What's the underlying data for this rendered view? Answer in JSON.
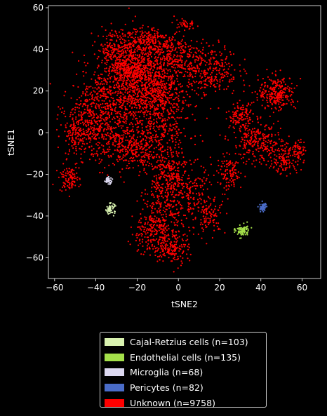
{
  "chart_data": {
    "type": "scatter",
    "xlabel": "tSNE2",
    "ylabel": "tSNE1",
    "xlim": [
      -63,
      69
    ],
    "ylim": [
      -70,
      61
    ],
    "xticks": [
      -60,
      -40,
      -20,
      0,
      20,
      40,
      60
    ],
    "yticks": [
      -60,
      -40,
      -20,
      0,
      20,
      40,
      60
    ],
    "xtick_labels": [
      "−60",
      "−40",
      "−20",
      "0",
      "20",
      "40",
      "60"
    ],
    "ytick_labels": [
      "−60",
      "−40",
      "−20",
      "0",
      "20",
      "40",
      "60"
    ],
    "grid": false,
    "legend_position": "below plot",
    "series": [
      {
        "name": "Cajal-Retzius cells (n=103)",
        "color": "#d9f2b0",
        "clusters": [
          {
            "x": -33,
            "y": -36.5,
            "sx": 1.1,
            "sy": 1.2,
            "n": 60
          }
        ]
      },
      {
        "name": "Endothelial cells (n=135)",
        "color": "#a4e04a",
        "clusters": [
          {
            "x": 31,
            "y": -47,
            "sx": 1.6,
            "sy": 1.5,
            "n": 80
          }
        ]
      },
      {
        "name": "Microglia (n=68)",
        "color": "#dcd8f0",
        "clusters": [
          {
            "x": -34,
            "y": -23,
            "sx": 1.0,
            "sy": 0.8,
            "n": 40
          }
        ]
      },
      {
        "name": "Pericytes (n=82)",
        "color": "#4a6cc8",
        "clusters": [
          {
            "x": 41,
            "y": -36,
            "sx": 0.8,
            "sy": 1.2,
            "n": 50
          }
        ]
      },
      {
        "name": "Unknown (n=9758)",
        "color": "#ff0000",
        "clusters": [
          {
            "x": -20,
            "y": 27,
            "sx": 9,
            "sy": 10,
            "n": 700
          },
          {
            "x": -10,
            "y": 20,
            "sx": 7,
            "sy": 7,
            "n": 400
          },
          {
            "x": -35,
            "y": 12,
            "sx": 9,
            "sy": 9,
            "n": 450
          },
          {
            "x": -45,
            "y": 5,
            "sx": 4,
            "sy": 8,
            "n": 180
          },
          {
            "x": -50,
            "y": -2,
            "sx": 2.5,
            "sy": 5,
            "n": 90
          },
          {
            "x": -30,
            "y": 40,
            "sx": 5,
            "sy": 5,
            "n": 200
          },
          {
            "x": -5,
            "y": 38,
            "sx": 8,
            "sy": 5,
            "n": 280
          },
          {
            "x": 15,
            "y": 30,
            "sx": 7,
            "sy": 6,
            "n": 300
          },
          {
            "x": 3,
            "y": 52,
            "sx": 2.5,
            "sy": 1.5,
            "n": 40
          },
          {
            "x": -30,
            "y": -5,
            "sx": 6,
            "sy": 6,
            "n": 200
          },
          {
            "x": -20,
            "y": -10,
            "sx": 5,
            "sy": 5,
            "n": 150
          },
          {
            "x": -10,
            "y": 2,
            "sx": 8,
            "sy": 8,
            "n": 300
          },
          {
            "x": -5,
            "y": -20,
            "sx": 4,
            "sy": 8,
            "n": 250
          },
          {
            "x": -7,
            "y": -40,
            "sx": 5,
            "sy": 8,
            "n": 250
          },
          {
            "x": -3,
            "y": -55,
            "sx": 4,
            "sy": 4,
            "n": 150
          },
          {
            "x": -15,
            "y": -48,
            "sx": 4,
            "sy": 5,
            "n": 120
          },
          {
            "x": 5,
            "y": -30,
            "sx": 6,
            "sy": 8,
            "n": 180
          },
          {
            "x": 15,
            "y": -40,
            "sx": 4,
            "sy": 4,
            "n": 100
          },
          {
            "x": 48,
            "y": 19,
            "sx": 4.5,
            "sy": 4,
            "n": 260
          },
          {
            "x": 30,
            "y": 8,
            "sx": 3,
            "sy": 3,
            "n": 120
          },
          {
            "x": 38,
            "y": -5,
            "sx": 6,
            "sy": 5,
            "n": 250
          },
          {
            "x": 52,
            "y": -12,
            "sx": 4,
            "sy": 4,
            "n": 140
          },
          {
            "x": 58,
            "y": -8,
            "sx": 2,
            "sy": 2,
            "n": 50
          },
          {
            "x": 25,
            "y": -20,
            "sx": 3,
            "sy": 4,
            "n": 110
          },
          {
            "x": -53,
            "y": -22,
            "sx": 2.5,
            "sy": 3,
            "n": 100
          },
          {
            "x": -16,
            "y": 45,
            "sx": 5,
            "sy": 3,
            "n": 150
          },
          {
            "x": -25,
            "y": 30,
            "sx": 4,
            "sy": 3,
            "n": 150
          }
        ]
      }
    ]
  }
}
